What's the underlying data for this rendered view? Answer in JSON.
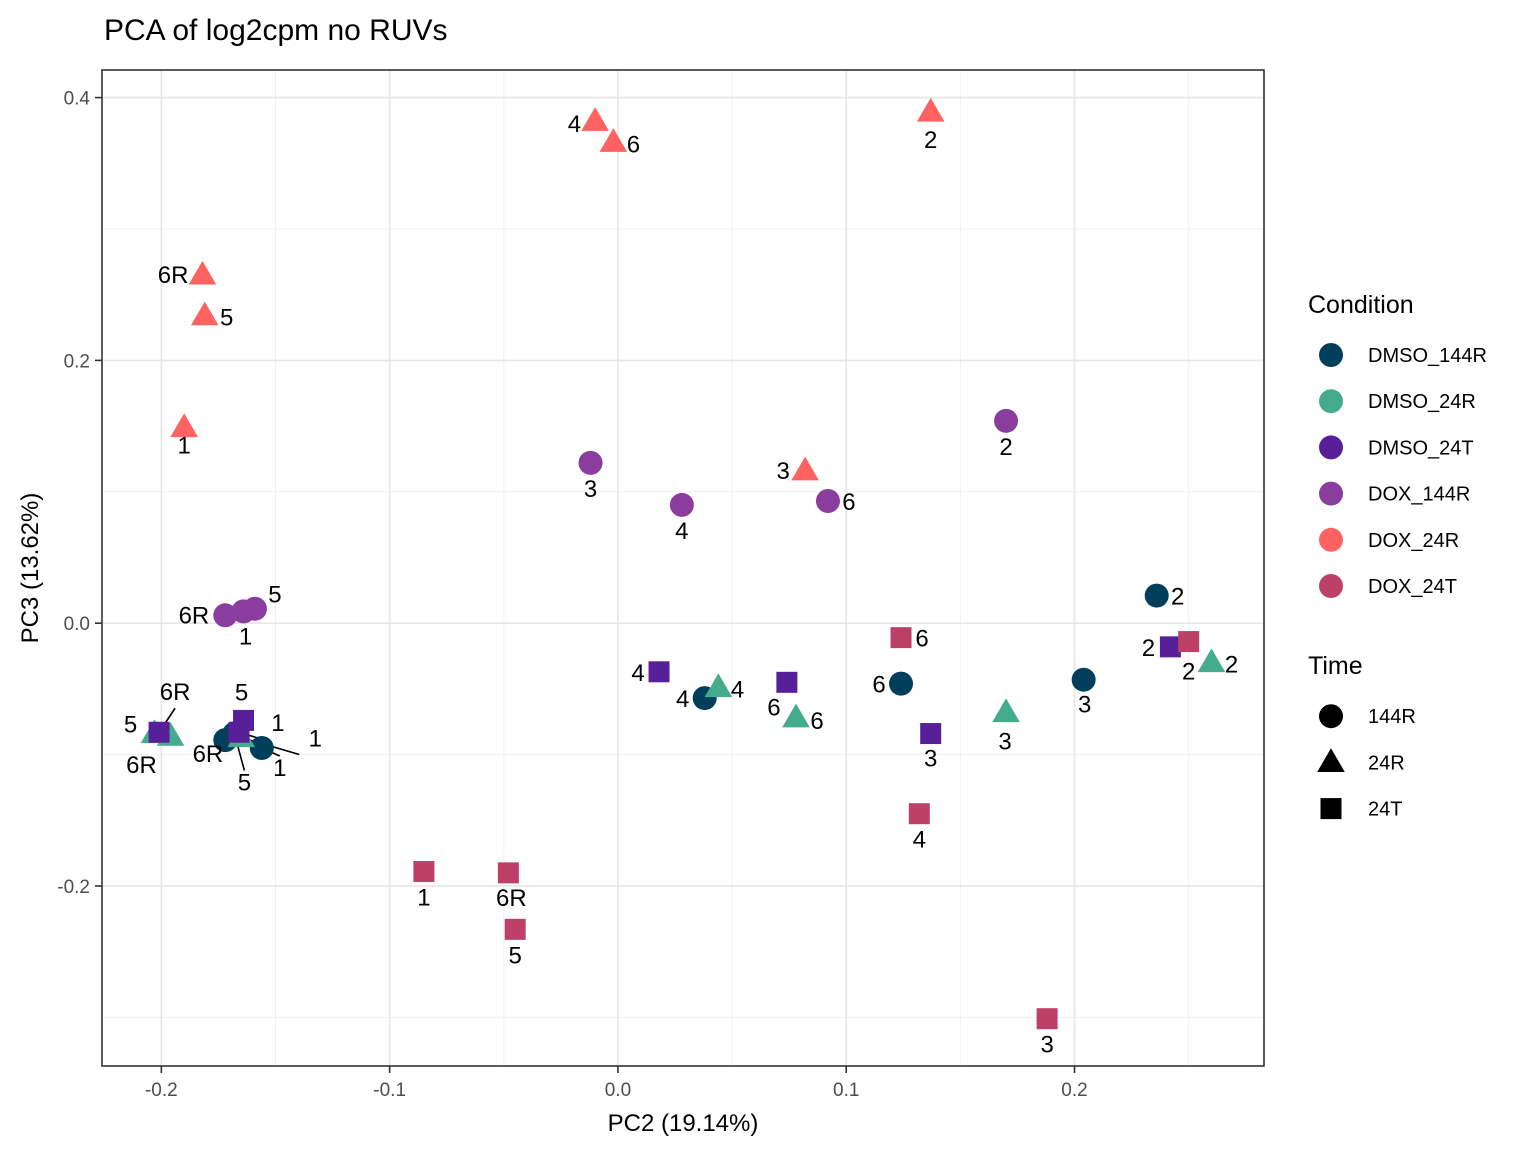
{
  "chart_data": {
    "type": "scatter",
    "title": "PCA of log2cpm no RUVs",
    "xlabel": "PC2 (19.14%)",
    "ylabel": "PC3 (13.62%)",
    "xlim": [
      -0.226,
      0.283
    ],
    "ylim": [
      -0.337,
      0.421
    ],
    "xticks": [
      -0.2,
      -0.1,
      0.0,
      0.1,
      0.2
    ],
    "xtick_labels": [
      "-0.2",
      "-0.1",
      "0.0",
      "0.1",
      "0.2"
    ],
    "yticks": [
      -0.2,
      0.0,
      0.2,
      0.4
    ],
    "ytick_labels": [
      "-0.2",
      "0.0",
      "0.2",
      "0.4"
    ],
    "grid": true,
    "legend_position": "right",
    "legends": [
      {
        "title": "Condition",
        "entries": [
          {
            "label": "DMSO_144R",
            "color": "#003f5c"
          },
          {
            "label": "DMSO_24R",
            "color": "#45ab8d"
          },
          {
            "label": "DMSO_24T",
            "color": "#57209a"
          },
          {
            "label": "DOX_144R",
            "color": "#8a3d9e"
          },
          {
            "label": "DOX_24R",
            "color": "#ff6361"
          },
          {
            "label": "DOX_24T",
            "color": "#bc4068"
          }
        ]
      },
      {
        "title": "Time",
        "entries": [
          {
            "label": "144R",
            "shape": "circle"
          },
          {
            "label": "24R",
            "shape": "triangle"
          },
          {
            "label": "24T",
            "shape": "square"
          }
        ]
      }
    ],
    "series": [
      {
        "name": "DMSO_144R",
        "color": "#003f5c",
        "shape": "circle",
        "points": [
          {
            "x": -0.172,
            "y": -0.089,
            "label": "6R"
          },
          {
            "x": -0.168,
            "y": -0.084,
            "label": "5"
          },
          {
            "x": -0.156,
            "y": -0.095,
            "label": "1"
          },
          {
            "x": 0.038,
            "y": -0.057,
            "label": "4"
          },
          {
            "x": 0.124,
            "y": -0.046,
            "label": "6"
          },
          {
            "x": 0.204,
            "y": -0.043,
            "label": "3"
          },
          {
            "x": 0.236,
            "y": 0.021,
            "label": "2"
          }
        ]
      },
      {
        "name": "DMSO_24R",
        "color": "#45ab8d",
        "shape": "triangle",
        "points": [
          {
            "x": -0.203,
            "y": -0.084,
            "label": "5"
          },
          {
            "x": -0.196,
            "y": -0.086,
            "label": "6R"
          },
          {
            "x": -0.165,
            "y": -0.087,
            "label": "1"
          },
          {
            "x": 0.044,
            "y": -0.049,
            "label": "4"
          },
          {
            "x": 0.078,
            "y": -0.072,
            "label": "6"
          },
          {
            "x": 0.17,
            "y": -0.068,
            "label": "3"
          },
          {
            "x": 0.26,
            "y": -0.03,
            "label": "2"
          }
        ]
      },
      {
        "name": "DMSO_24T",
        "color": "#57209a",
        "shape": "square",
        "points": [
          {
            "x": -0.201,
            "y": -0.083,
            "label": "6R"
          },
          {
            "x": -0.166,
            "y": -0.083,
            "label": "1"
          },
          {
            "x": -0.164,
            "y": -0.074,
            "label": "5"
          },
          {
            "x": 0.018,
            "y": -0.037,
            "label": "4"
          },
          {
            "x": 0.074,
            "y": -0.045,
            "label": "6"
          },
          {
            "x": 0.137,
            "y": -0.084,
            "label": "3"
          },
          {
            "x": 0.242,
            "y": -0.018,
            "label": "2"
          }
        ]
      },
      {
        "name": "DOX_144R",
        "color": "#8a3d9e",
        "shape": "circle",
        "points": [
          {
            "x": -0.172,
            "y": 0.006,
            "label": "6R"
          },
          {
            "x": -0.164,
            "y": 0.009,
            "label": "1"
          },
          {
            "x": -0.159,
            "y": 0.011,
            "label": "5"
          },
          {
            "x": -0.012,
            "y": 0.122,
            "label": "3"
          },
          {
            "x": 0.028,
            "y": 0.09,
            "label": "4"
          },
          {
            "x": 0.092,
            "y": 0.093,
            "label": "6"
          },
          {
            "x": 0.17,
            "y": 0.154,
            "label": "2"
          }
        ]
      },
      {
        "name": "DOX_24R",
        "color": "#ff6361",
        "shape": "triangle",
        "points": [
          {
            "x": -0.19,
            "y": 0.149,
            "label": "1"
          },
          {
            "x": -0.181,
            "y": 0.234,
            "label": "5"
          },
          {
            "x": -0.182,
            "y": 0.265,
            "label": "6R"
          },
          {
            "x": -0.01,
            "y": 0.382,
            "label": "4"
          },
          {
            "x": -0.002,
            "y": 0.366,
            "label": "6"
          },
          {
            "x": 0.137,
            "y": 0.389,
            "label": "2"
          },
          {
            "x": 0.082,
            "y": 0.116,
            "label": "3"
          }
        ]
      },
      {
        "name": "DOX_24T",
        "color": "#bc4068",
        "shape": "square",
        "points": [
          {
            "x": -0.085,
            "y": -0.189,
            "label": "1"
          },
          {
            "x": -0.048,
            "y": -0.19,
            "label": "6R"
          },
          {
            "x": -0.045,
            "y": -0.233,
            "label": "5"
          },
          {
            "x": 0.132,
            "y": -0.145,
            "label": "4"
          },
          {
            "x": 0.124,
            "y": -0.011,
            "label": "6"
          },
          {
            "x": 0.188,
            "y": -0.301,
            "label": "3"
          },
          {
            "x": 0.25,
            "y": -0.014,
            "label": "2"
          }
        ]
      }
    ]
  }
}
